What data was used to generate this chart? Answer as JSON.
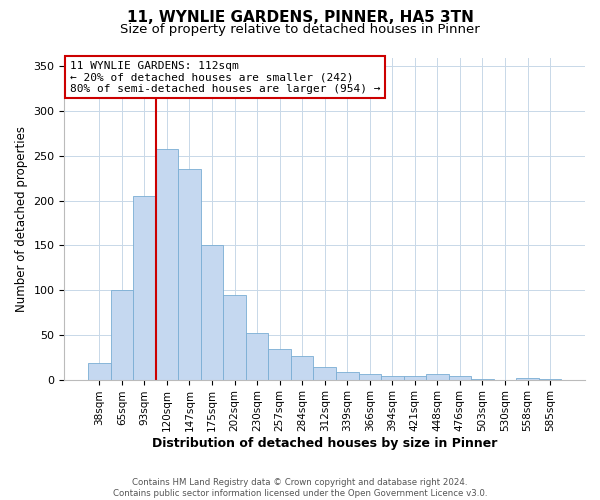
{
  "title": "11, WYNLIE GARDENS, PINNER, HA5 3TN",
  "subtitle": "Size of property relative to detached houses in Pinner",
  "xlabel": "Distribution of detached houses by size in Pinner",
  "ylabel": "Number of detached properties",
  "bar_labels": [
    "38sqm",
    "65sqm",
    "93sqm",
    "120sqm",
    "147sqm",
    "175sqm",
    "202sqm",
    "230sqm",
    "257sqm",
    "284sqm",
    "312sqm",
    "339sqm",
    "366sqm",
    "394sqm",
    "421sqm",
    "448sqm",
    "476sqm",
    "503sqm",
    "530sqm",
    "558sqm",
    "585sqm"
  ],
  "bar_values": [
    18,
    100,
    205,
    258,
    235,
    150,
    95,
    52,
    34,
    26,
    14,
    9,
    6,
    4,
    4,
    6,
    4,
    1,
    0,
    2,
    1
  ],
  "bar_color": "#c5d8f0",
  "bar_edgecolor": "#7aadd4",
  "vline_color": "#cc0000",
  "ylim": [
    0,
    360
  ],
  "yticks": [
    0,
    50,
    100,
    150,
    200,
    250,
    300,
    350
  ],
  "annotation_title": "11 WYNLIE GARDENS: 112sqm",
  "annotation_line1": "← 20% of detached houses are smaller (242)",
  "annotation_line2": "80% of semi-detached houses are larger (954) →",
  "annotation_box_facecolor": "#ffffff",
  "annotation_box_edgecolor": "#cc0000",
  "footer_line1": "Contains HM Land Registry data © Crown copyright and database right 2024.",
  "footer_line2": "Contains public sector information licensed under the Open Government Licence v3.0.",
  "background_color": "#ffffff",
  "grid_color": "#c8d8e8",
  "title_fontsize": 11,
  "subtitle_fontsize": 9.5
}
